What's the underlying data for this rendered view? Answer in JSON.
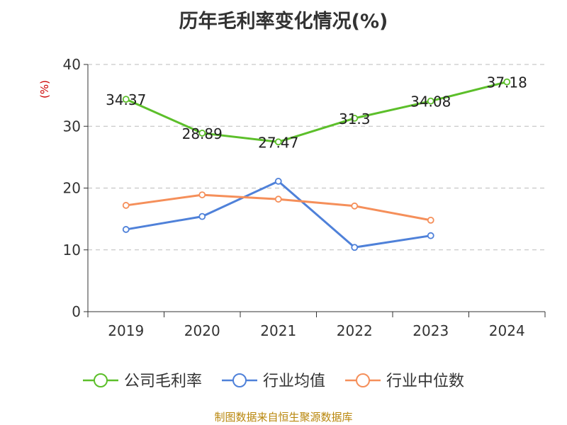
{
  "source_note": "制图数据来自恒生聚源数据库",
  "colors": {
    "gridline": "#bbbbbb",
    "axis": "#333333",
    "ylabel": "#cc0000"
  },
  "chart_data": {
    "type": "line",
    "title": "历年毛利率变化情况(%)",
    "xlabel": "",
    "ylabel": "(%)",
    "categories": [
      "2019",
      "2020",
      "2021",
      "2022",
      "2023",
      "2024"
    ],
    "ylim": [
      0,
      40
    ],
    "yticks": [
      0,
      10,
      20,
      30,
      40
    ],
    "grid": true,
    "legend_position": "bottom",
    "series": [
      {
        "name": "公司毛利率",
        "color": "#5cbf2a",
        "values": [
          34.37,
          28.89,
          27.47,
          31.3,
          34.08,
          37.18
        ],
        "labels": [
          "34.37",
          "28.89",
          "27.47",
          "31.3",
          "34.08",
          "37.18"
        ]
      },
      {
        "name": "行业均值",
        "color": "#4f81d9",
        "values": [
          13.3,
          15.4,
          21.1,
          10.4,
          12.3,
          null
        ]
      },
      {
        "name": "行业中位数",
        "color": "#f58f5a",
        "values": [
          17.2,
          18.9,
          18.2,
          17.1,
          14.8,
          null
        ]
      }
    ]
  }
}
